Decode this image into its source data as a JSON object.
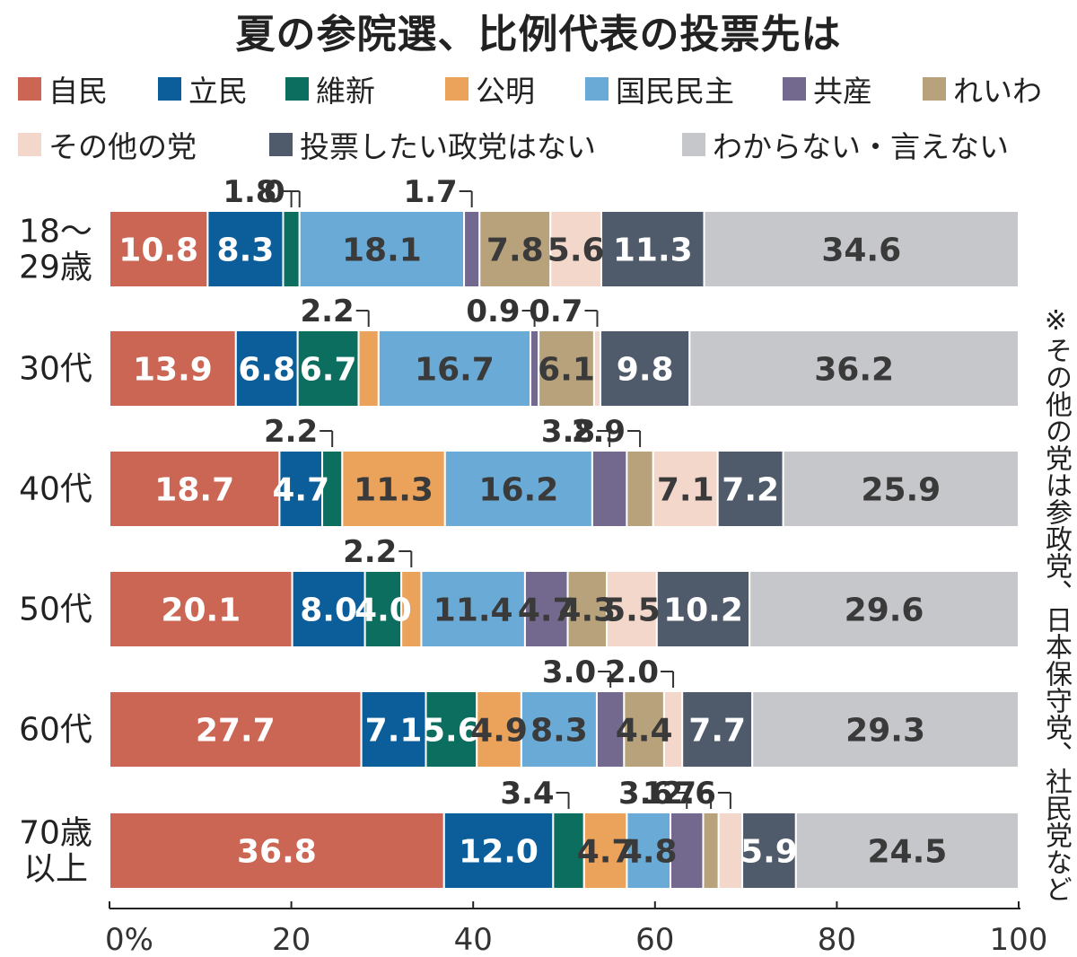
{
  "title": "夏の参院選、比例代表の投票先は",
  "note": "※その他の党は参政党、日本保守党、社民党など",
  "chart_data": {
    "type": "bar",
    "orientation": "horizontal",
    "stacked": true,
    "title": "夏の参院選、比例代表の投票先は",
    "categories": [
      "18〜\n29歳",
      "30代",
      "40代",
      "50代",
      "60代",
      "70歳\n以上"
    ],
    "xlim": [
      0,
      100
    ],
    "xticks": [
      "0%",
      "20",
      "40",
      "60",
      "80",
      "100"
    ],
    "legend_position": "top",
    "series": [
      {
        "name": "自民",
        "color": "#cc6654",
        "values": [
          10.8,
          13.9,
          18.7,
          20.1,
          27.7,
          36.8
        ]
      },
      {
        "name": "立民",
        "color": "#0c5e9b",
        "values": [
          8.3,
          6.8,
          4.7,
          8.0,
          7.1,
          12.0
        ]
      },
      {
        "name": "維新",
        "color": "#0b6e5e",
        "values": [
          1.8,
          6.7,
          2.2,
          4.0,
          5.6,
          3.4
        ]
      },
      {
        "name": "公明",
        "color": "#eba35b",
        "values": [
          0,
          2.2,
          11.3,
          2.2,
          4.9,
          4.7
        ]
      },
      {
        "name": "国民民主",
        "color": "#6aaad6",
        "values": [
          18.1,
          16.7,
          16.2,
          11.4,
          8.3,
          4.8
        ]
      },
      {
        "name": "共産",
        "color": "#73688e",
        "values": [
          1.7,
          0.9,
          3.8,
          4.7,
          3.0,
          3.6
        ]
      },
      {
        "name": "れいわ",
        "color": "#b8a27b",
        "values": [
          7.8,
          6.1,
          2.9,
          4.3,
          4.4,
          1.7
        ]
      },
      {
        "name": "その他の党",
        "color": "#f3d7ca",
        "values": [
          5.6,
          0.7,
          7.1,
          5.5,
          2.0,
          2.6
        ]
      },
      {
        "name": "投票したい政党はない",
        "color": "#4f5a6b",
        "values": [
          11.3,
          9.8,
          7.2,
          10.2,
          7.7,
          5.9
        ]
      },
      {
        "name": "わからない・言えない",
        "color": "#c6c7cb",
        "values": [
          34.6,
          36.2,
          25.9,
          29.6,
          29.3,
          24.5
        ]
      }
    ]
  }
}
